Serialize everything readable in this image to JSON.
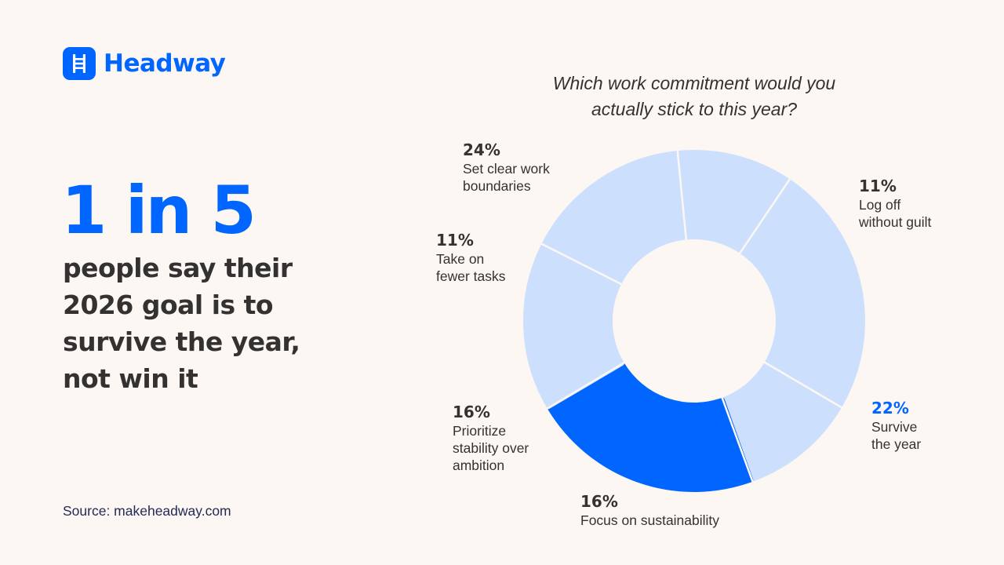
{
  "brand": {
    "name": "Headway",
    "icon": "ladder-icon",
    "color": "#0066ff"
  },
  "headline": {
    "stat": "1 in 5",
    "description": "people say their 2026 goal is to survive the year, not win it"
  },
  "source": "Source: makeheadway.com",
  "colors": {
    "background": "#fdf7f4",
    "highlight": "#0066ff",
    "segment": "#cce0fd",
    "text": "#333231"
  },
  "chart_data": {
    "type": "pie",
    "variant": "donut",
    "title": "Which work commitment would you actually stick to this year?",
    "unit": "%",
    "categories": [
      "Set clear work boundaries",
      "Log off without guilt",
      "Survive the year",
      "Focus on sustainability",
      "Prioritize stability over ambition",
      "Take on fewer tasks"
    ],
    "values": [
      24,
      11,
      22,
      16,
      16,
      11
    ],
    "highlighted": "Survive the year",
    "labels": [
      {
        "pct": "24%",
        "line1": "Set clear work",
        "line2": "boundaries",
        "line3": ""
      },
      {
        "pct": "11%",
        "line1": "Log off",
        "line2": "without guilt",
        "line3": ""
      },
      {
        "pct": "22%",
        "line1": "Survive",
        "line2": "the year",
        "line3": ""
      },
      {
        "pct": "16%",
        "line1": "Focus on sustainability",
        "line2": "",
        "line3": ""
      },
      {
        "pct": "16%",
        "line1": "Prioritize",
        "line2": "stability over",
        "line3": "ambition"
      },
      {
        "pct": "11%",
        "line1": "Take on",
        "line2": "fewer tasks",
        "line3": ""
      }
    ]
  }
}
